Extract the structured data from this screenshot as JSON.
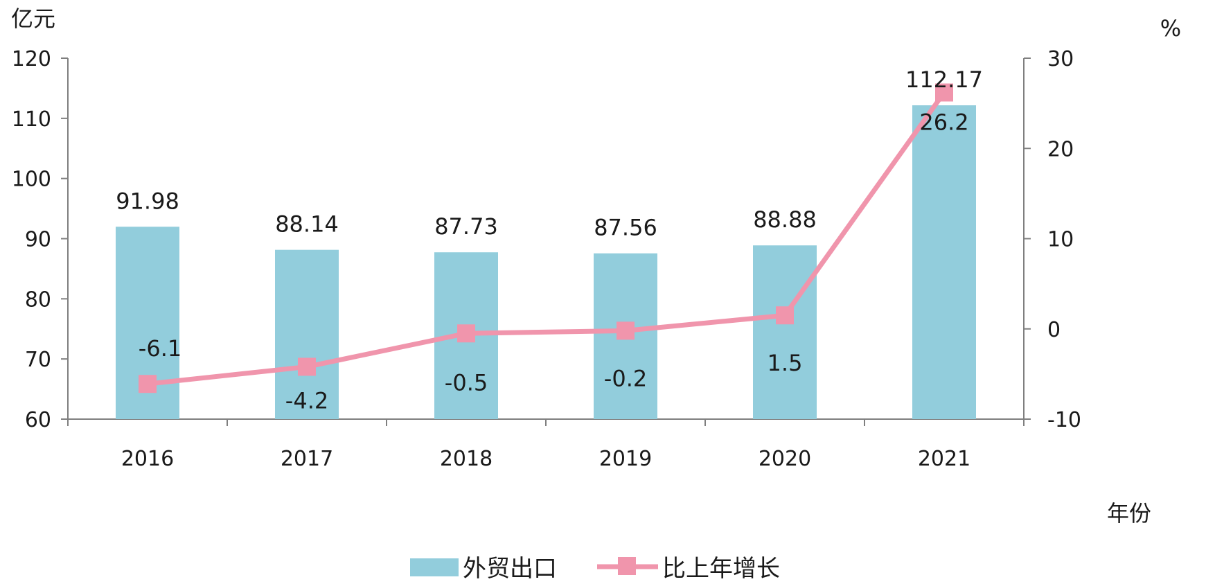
{
  "chart_data": {
    "type": "bar",
    "categories": [
      "2016",
      "2017",
      "2018",
      "2019",
      "2020",
      "2021"
    ],
    "series": [
      {
        "name": "外贸出口",
        "type": "bar",
        "axis": "left",
        "values": [
          91.98,
          88.14,
          87.73,
          87.56,
          88.88,
          112.17
        ],
        "labels": [
          "91.98",
          "88.14",
          "87.73",
          "87.56",
          "88.88",
          "112.17"
        ],
        "color": "#92cddc"
      },
      {
        "name": "比上年增长",
        "type": "line",
        "axis": "right",
        "values": [
          -6.1,
          -4.2,
          -0.5,
          -0.2,
          1.5,
          26.2
        ],
        "labels": [
          "-6.1",
          "-4.2",
          "-0.5",
          "-0.2",
          "1.5",
          "26.2"
        ],
        "color": "#f095ac"
      }
    ],
    "y_left": {
      "label": "亿元",
      "ylim": [
        60,
        120
      ],
      "ticks": [
        "60",
        "70",
        "80",
        "90",
        "100",
        "110",
        "120"
      ]
    },
    "y_right": {
      "label": "%",
      "ylim": [
        -10,
        30
      ],
      "ticks": [
        "-10",
        "0",
        "10",
        "20",
        "30"
      ]
    },
    "x_axis": {
      "label": "年份"
    },
    "grid": false,
    "legend_position": "bottom-center"
  }
}
